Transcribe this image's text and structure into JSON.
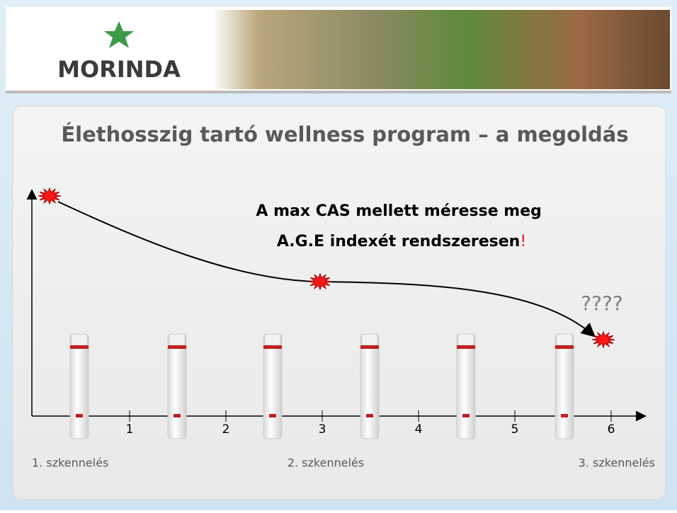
{
  "header": {
    "logo": "MORINDA"
  },
  "title": "Élethosszig tartó wellness program – a megoldás",
  "callout": {
    "lines": [
      "A max CAS mellett méresse meg",
      "A.G.E indexét rendszeresen"
    ],
    "exclamation": "!"
  },
  "question": "????",
  "axis": {
    "ticks": [
      "1",
      "2",
      "3",
      "4",
      "5",
      "6"
    ]
  },
  "scans": [
    "1. szkennelés",
    "2. szkennelés",
    "3. szkennelés"
  ]
}
